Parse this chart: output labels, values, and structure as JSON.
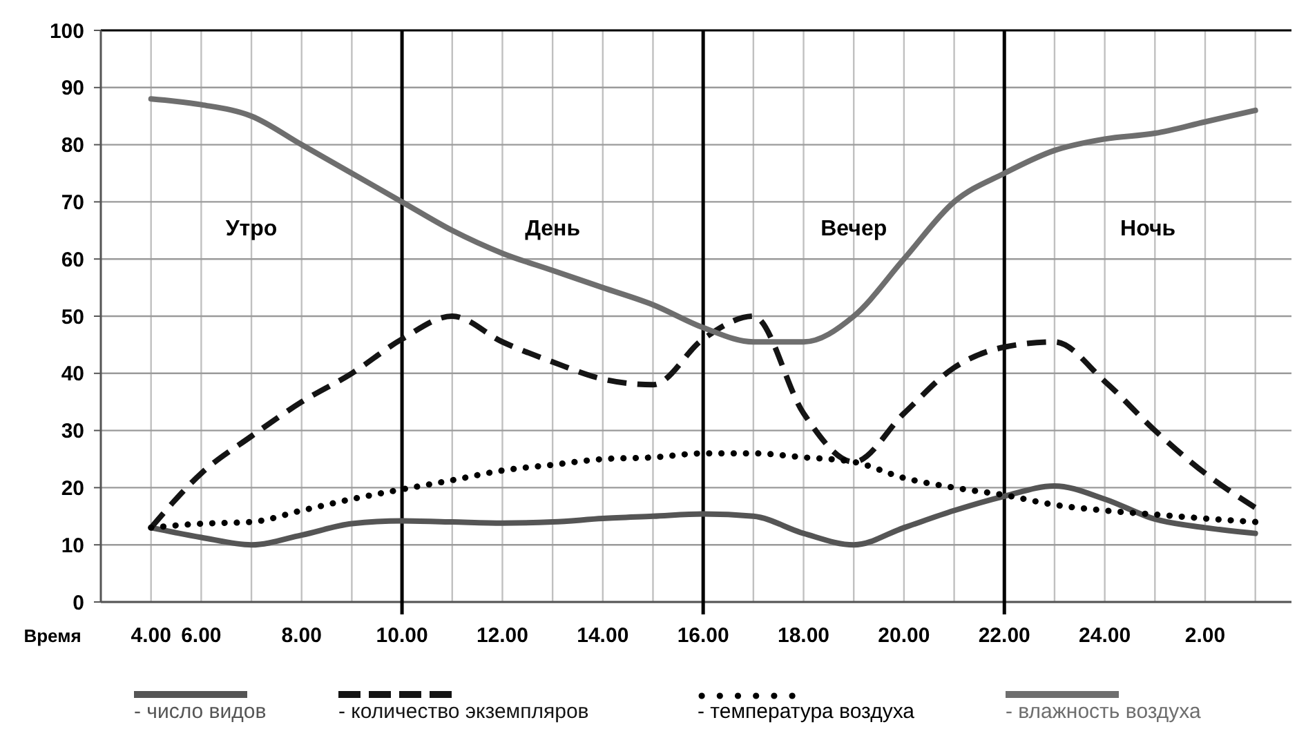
{
  "chart_data": {
    "type": "line",
    "xlabel": "Время",
    "categories": [
      "4.00",
      "6.00",
      null,
      "8.00",
      null,
      "10.00",
      null,
      "12.00",
      null,
      "14.00",
      null,
      "16.00",
      null,
      "18.00",
      null,
      "20.00",
      null,
      "22.00",
      null,
      "24.00",
      null,
      "2.00",
      null
    ],
    "series": [
      {
        "name": "- число видов",
        "color": "#555555",
        "line_style": "solid",
        "values": [
          13,
          11.3,
          10,
          11.7,
          13.7,
          14.2,
          14,
          13.8,
          14,
          14.6,
          15,
          15.4,
          15,
          12,
          10,
          13,
          16,
          18.5,
          20.3,
          18,
          14.5,
          13,
          12
        ]
      },
      {
        "name": "- количество экземпляров",
        "color": "#141414",
        "line_style": "dashed",
        "values": [
          13,
          22.5,
          29,
          35,
          40,
          46,
          50,
          45.5,
          42,
          39,
          38,
          46,
          50,
          33,
          24.5,
          33,
          41,
          44.6,
          45.5,
          38.6,
          30,
          22.5,
          16.5
        ]
      },
      {
        "name": "- температура воздуха",
        "color": "#000000",
        "line_style": "dotted",
        "values": [
          13,
          13.7,
          14,
          16,
          18,
          19.7,
          21.3,
          23,
          24,
          25,
          25.3,
          26,
          26,
          25.3,
          24.5,
          21.7,
          20,
          18.7,
          17,
          16,
          15.3,
          14.6,
          14
        ]
      },
      {
        "name": "- влажность воздуха",
        "color": "#6e6e6e",
        "line_style": "solid",
        "values": [
          88,
          87,
          85,
          80,
          75,
          70,
          65,
          61,
          58,
          55,
          52,
          48,
          45.5,
          45.5,
          50,
          60,
          70,
          75,
          79,
          81,
          82,
          84,
          86
        ]
      }
    ],
    "ylim": [
      0,
      100
    ],
    "yticks": [
      0,
      10,
      20,
      30,
      40,
      50,
      60,
      70,
      80,
      90,
      100
    ],
    "grid": true,
    "legend": "bottom",
    "marker": "none",
    "ref_lines": [
      {
        "axis": "x",
        "value": "10.00",
        "color": "#000000"
      },
      {
        "axis": "x",
        "value": "16.00",
        "color": "#000000"
      },
      {
        "axis": "x",
        "value": "22.00",
        "color": "#000000"
      }
    ],
    "annotations": [
      "Утро",
      "День",
      "Вечер",
      "Ночь"
    ]
  }
}
